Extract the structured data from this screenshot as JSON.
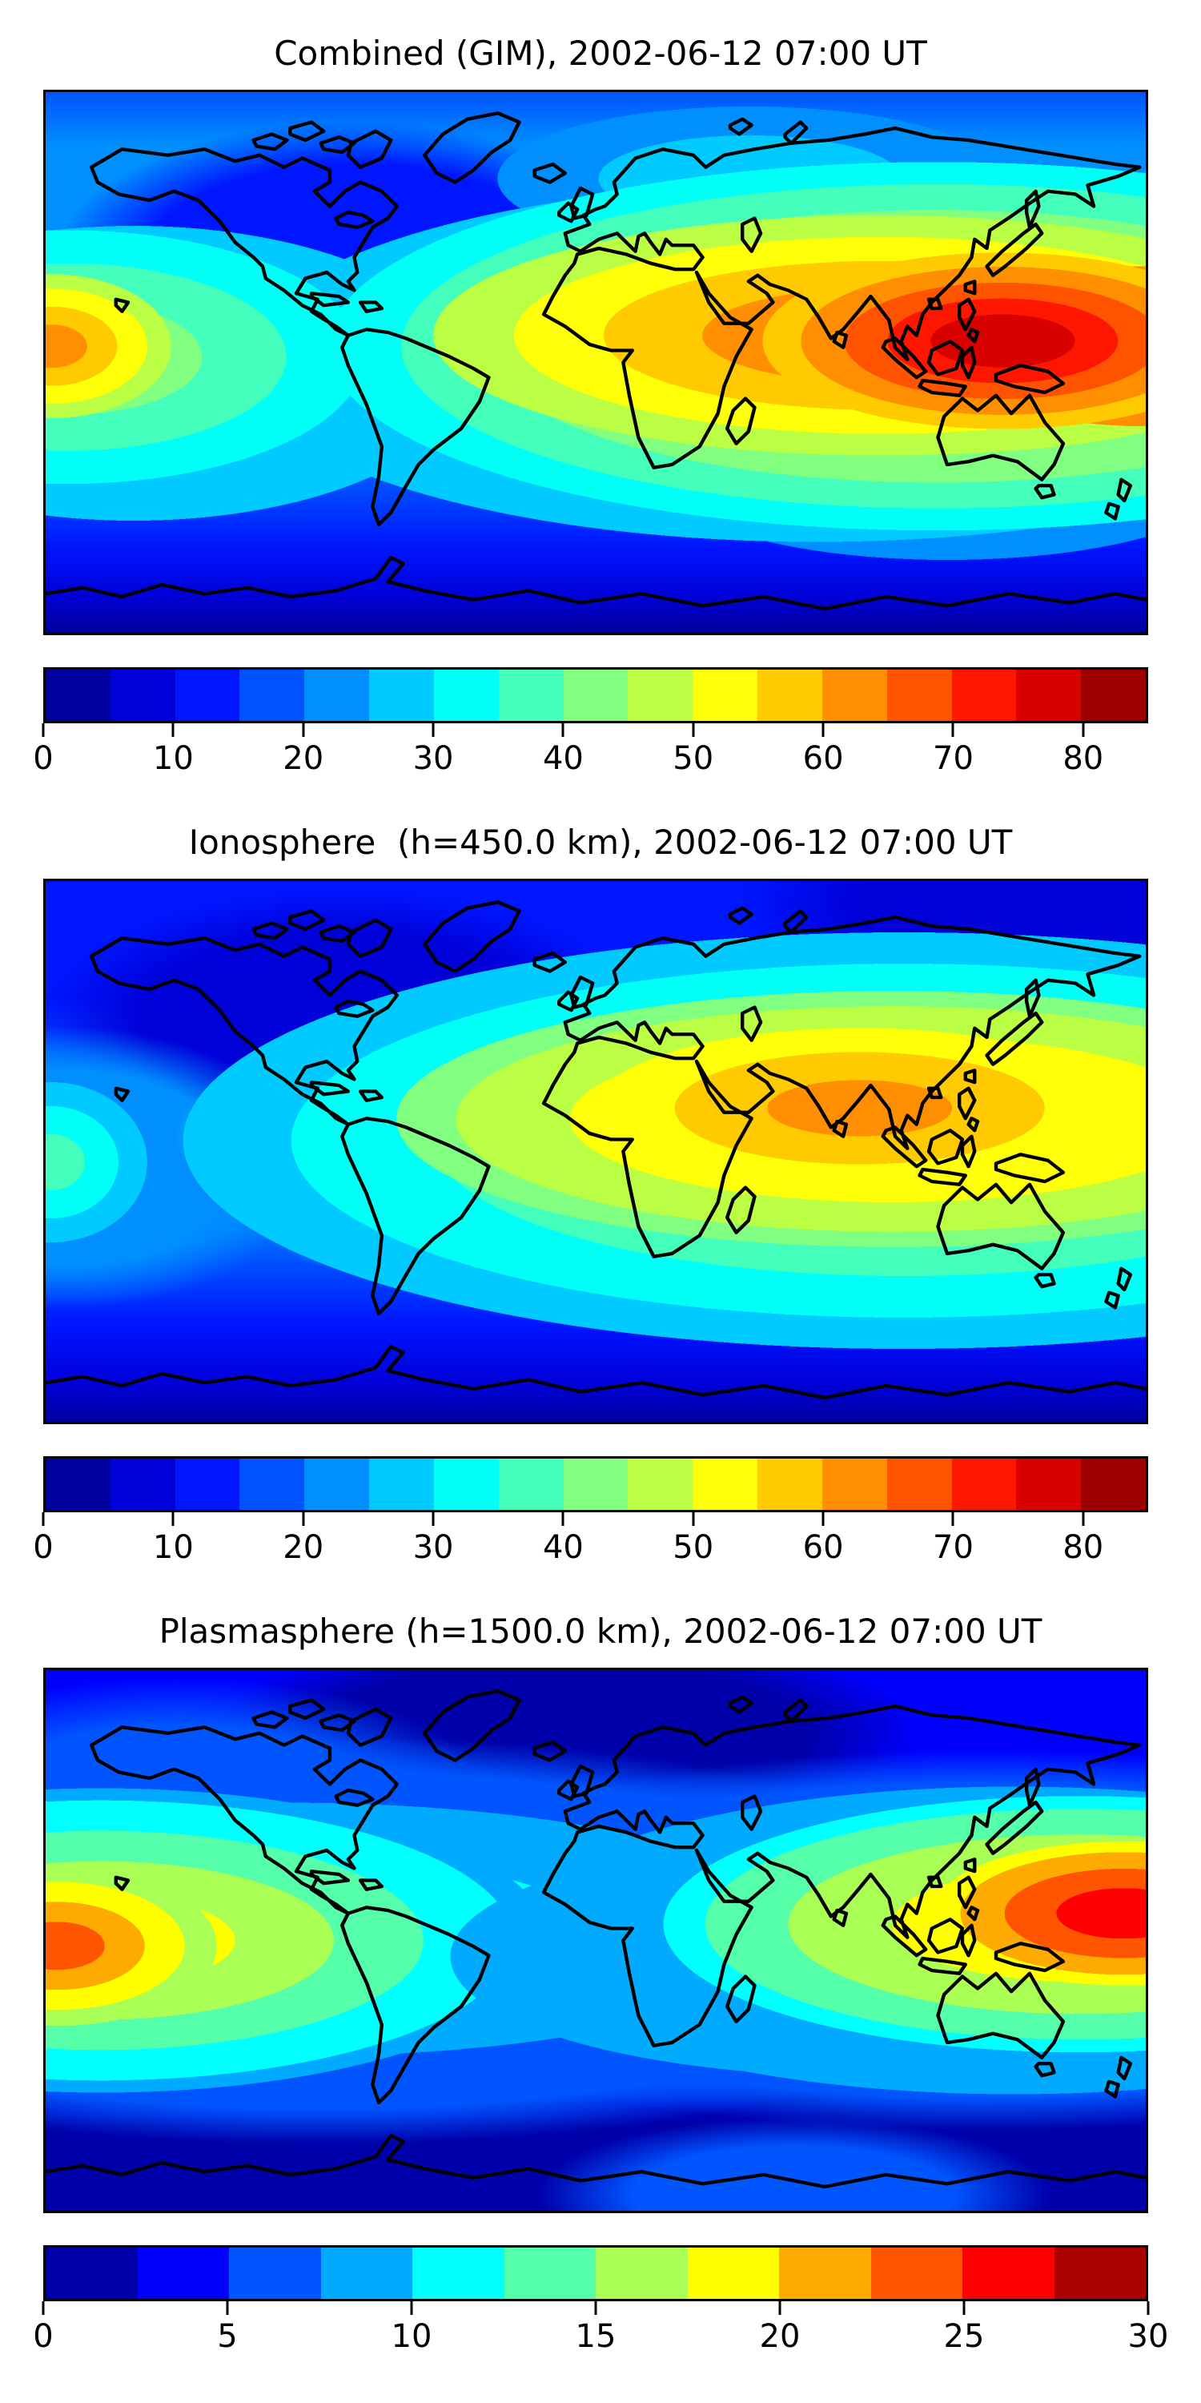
{
  "figure": {
    "background_color": "#ffffff",
    "coastline_color": "#000000",
    "colormap_name": "jet"
  },
  "panels": [
    {
      "id": "combined",
      "title": "Combined (GIM), 2002-06-12 07:00 UT",
      "colorbar": {
        "vmin": 0,
        "vmax": 85,
        "ticks": [
          0,
          10,
          20,
          30,
          40,
          50,
          60,
          70,
          80
        ],
        "segment_colors": [
          "#00009E",
          "#0000D9",
          "#0016FF",
          "#0053FF",
          "#008FFF",
          "#00CAFF",
          "#00FFF7",
          "#44FFBB",
          "#80FF80",
          "#BBFF44",
          "#FFFF08",
          "#FFCA00",
          "#FF8F00",
          "#FF5300",
          "#FF1600",
          "#D90000",
          "#9E0000"
        ]
      }
    },
    {
      "id": "ionosphere",
      "title": "Ionosphere  (h=450.0 km), 2002-06-12 07:00 UT",
      "colorbar": {
        "vmin": 0,
        "vmax": 85,
        "ticks": [
          0,
          10,
          20,
          30,
          40,
          50,
          60,
          70,
          80
        ],
        "segment_colors": [
          "#00009E",
          "#0000D9",
          "#0016FF",
          "#0053FF",
          "#008FFF",
          "#00CAFF",
          "#00FFF7",
          "#44FFBB",
          "#80FF80",
          "#BBFF44",
          "#FFFF08",
          "#FFCA00",
          "#FF8F00",
          "#FF5300",
          "#FF1600",
          "#D90000",
          "#9E0000"
        ]
      }
    },
    {
      "id": "plasmasphere",
      "title": "Plasmasphere (h=1500.0 km), 2002-06-12 07:00 UT",
      "colorbar": {
        "vmin": 0,
        "vmax": 30,
        "ticks": [
          0,
          5,
          10,
          15,
          20,
          25,
          30
        ],
        "segment_colors": [
          "#0000AA",
          "#0000FF",
          "#0055FF",
          "#00AAFF",
          "#00FFFF",
          "#55FFAA",
          "#AAFF55",
          "#FFFF00",
          "#FFAA00",
          "#FF5500",
          "#FF0000",
          "#AA0000"
        ]
      }
    }
  ],
  "chart_data": [
    {
      "type": "heatmap",
      "subtype": "filled-contour world map, equirectangular projection with coastlines",
      "title": "Combined (GIM), 2002-06-12 07:00 UT",
      "colormap": "jet",
      "contour_levels": {
        "min": 0,
        "max": 85,
        "step": 5
      },
      "colorbar_ticks": [
        0,
        10,
        20,
        30,
        40,
        50,
        60,
        70,
        80
      ],
      "lon_range": [
        -180,
        180
      ],
      "lat_range": [
        -90,
        90
      ],
      "grid": false,
      "features": [
        {
          "label": "primary equatorial maximum over SE Asia / W Pacific",
          "approx_lon": 135,
          "approx_lat": 8,
          "approx_value": 80
        },
        {
          "label": "enhanced band over India-Indochina",
          "approx_lon": 90,
          "approx_lat": 12,
          "approx_value": 65
        },
        {
          "label": "secondary maximum at dateline (wraps to left map edge)",
          "approx_lon": -179,
          "approx_lat": 0,
          "approx_value": 55
        },
        {
          "label": "depressed trough over NE Canada / N Atlantic",
          "approx_lon": -70,
          "approx_lat": 45,
          "approx_value": 12
        },
        {
          "label": "southern polar minimum band",
          "approx_lat": -80,
          "approx_value": 5
        }
      ]
    },
    {
      "type": "heatmap",
      "subtype": "filled-contour world map, equirectangular projection with coastlines",
      "title": "Ionosphere  (h=450.0 km), 2002-06-12 07:00 UT",
      "colormap": "jet",
      "contour_levels": {
        "min": 0,
        "max": 85,
        "step": 5
      },
      "colorbar_ticks": [
        0,
        10,
        20,
        30,
        40,
        50,
        60,
        70,
        80
      ],
      "lon_range": [
        -180,
        180
      ],
      "lat_range": [
        -90,
        90
      ],
      "grid": false,
      "features": [
        {
          "label": "maximum over India / Bay of Bengal / Indochina",
          "approx_lon": 90,
          "approx_lat": 15,
          "approx_value": 62
        },
        {
          "label": "yellow-green band extending to right map edge",
          "approx_lon": 170,
          "approx_lat": 8,
          "approx_value": 45
        },
        {
          "label": "weak enhancement at dateline (left map edge)",
          "approx_lon": -179,
          "approx_lat": -3,
          "approx_value": 35
        },
        {
          "label": "dark patch over NE Canada / N Atlantic",
          "approx_lon": -70,
          "approx_lat": 50,
          "approx_value": 8
        },
        {
          "label": "southern polar minimum band",
          "approx_lat": -80,
          "approx_value": 5
        }
      ]
    },
    {
      "type": "heatmap",
      "subtype": "filled-contour world map, equirectangular projection with coastlines",
      "title": "Plasmasphere (h=1500.0 km), 2002-06-12 07:00 UT",
      "colormap": "jet",
      "contour_levels": {
        "min": 0,
        "max": 30,
        "step": 2.5
      },
      "colorbar_ticks": [
        0,
        5,
        10,
        15,
        20,
        25,
        30
      ],
      "lon_range": [
        -180,
        180
      ],
      "lat_range": [
        -90,
        90
      ],
      "grid": false,
      "features": [
        {
          "label": "maximum at right map edge over W Pacific",
          "approx_lon": 172,
          "approx_lat": 9,
          "approx_value": 27
        },
        {
          "label": "maximum at left map edge near dateline",
          "approx_lon": -175,
          "approx_lat": -3,
          "approx_value": 24
        },
        {
          "label": "cyan band across Central America / Caribbean",
          "approx_lon": -90,
          "approx_lat": 8,
          "approx_value": 12
        },
        {
          "label": "dark minimum over Greenland / Arctic Atlantic",
          "approx_lon": -10,
          "approx_lat": 68,
          "approx_value": 2
        },
        {
          "label": "dark minimum SW of Australia and southern polar band",
          "approx_lat": -65,
          "approx_value": 2
        }
      ]
    }
  ]
}
